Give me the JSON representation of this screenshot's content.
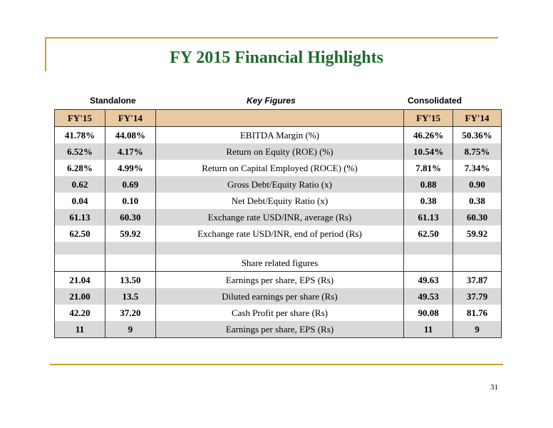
{
  "title": "FY 2015 Financial Highlights",
  "headers": {
    "standalone": "Standalone",
    "key_figures": "Key Figures",
    "consolidated": "Consolidated"
  },
  "columns": [
    "FY'15",
    "FY'14",
    "",
    "FY'15",
    "FY'14"
  ],
  "rows": [
    {
      "s15": "41.78%",
      "s14": "44.08%",
      "label": "EBITDA Margin (%)",
      "c15": "46.26%",
      "c14": "50.36%"
    },
    {
      "s15": "6.52%",
      "s14": "4.17%",
      "label": "Return on Equity (ROE) (%)",
      "c15": "10.54%",
      "c14": "8.75%"
    },
    {
      "s15": "6.28%",
      "s14": "4.99%",
      "label": "Return on Capital Employed (ROCE) (%)",
      "c15": "7.81%",
      "c14": "7.34%"
    },
    {
      "s15": "0.62",
      "s14": "0.69",
      "label": "Gross Debt/Equity Ratio (x)",
      "c15": "0.88",
      "c14": "0.90"
    },
    {
      "s15": "0.04",
      "s14": "0.10",
      "label": "Net Debt/Equity Ratio (x)",
      "c15": "0.38",
      "c14": "0.38"
    },
    {
      "s15": "61.13",
      "s14": "60.30",
      "label": "Exchange rate USD/INR, average (Rs)",
      "c15": "61.13",
      "c14": "60.30"
    },
    {
      "s15": "62.50",
      "s14": "59.92",
      "label": "Exchange rate USD/INR, end of period (Rs)",
      "c15": "62.50",
      "c14": "59.92"
    }
  ],
  "section_label": "Share related figures",
  "share_rows": [
    {
      "s15": "21.04",
      "s14": "13.50",
      "label": "Earnings per share, EPS (Rs)",
      "c15": "49.63",
      "c14": "37.87"
    },
    {
      "s15": "21.00",
      "s14": "13.5",
      "label": "Diluted earnings per share (Rs)",
      "c15": "49.53",
      "c14": "37.79"
    },
    {
      "s15": "42.20",
      "s14": "37.20",
      "label": "Cash Profit per share (Rs)",
      "c15": "90.08",
      "c14": "81.76"
    },
    {
      "s15": "11",
      "s14": "9",
      "label": "Earnings per share, EPS (Rs)",
      "c15": "11",
      "c14": "9"
    }
  ],
  "page_number": "31",
  "colors": {
    "title": "#1f6b2c",
    "header_fill": "#e8c9a1",
    "rule": "#c9a227",
    "stripe": "#d9d9d9"
  }
}
